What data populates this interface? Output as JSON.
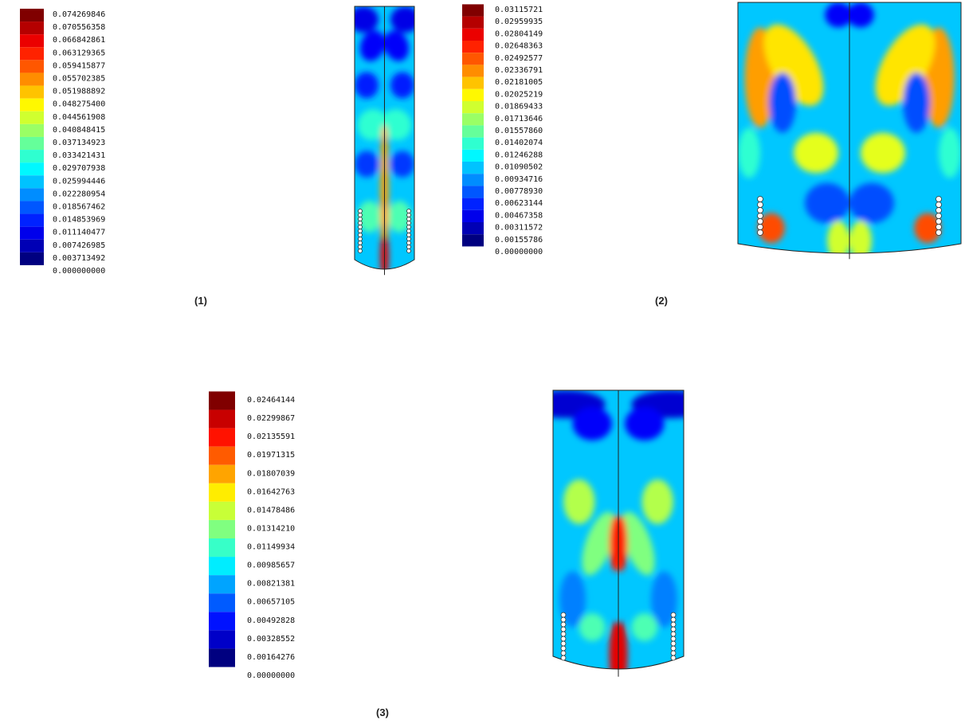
{
  "panels": [
    {
      "caption": "(1)",
      "legend_labels": [
        "0.074269846",
        "0.070556358",
        "0.066842861",
        "0.063129365",
        "0.059415877",
        "0.055702385",
        "0.051988892",
        "0.048275400",
        "0.044561908",
        "0.040848415",
        "0.037134923",
        "0.033421431",
        "0.029707938",
        "0.025994446",
        "0.022280954",
        "0.018567462",
        "0.014853969",
        "0.011140477",
        "0.007426985",
        "0.003713492",
        "0.000000000"
      ]
    },
    {
      "caption": "(2)",
      "legend_labels": [
        "0.03115721",
        "0.02959935",
        "0.02804149",
        "0.02648363",
        "0.02492577",
        "0.02336791",
        "0.02181005",
        "0.02025219",
        "0.01869433",
        "0.01713646",
        "0.01557860",
        "0.01402074",
        "0.01246288",
        "0.01090502",
        "0.00934716",
        "0.00778930",
        "0.00623144",
        "0.00467358",
        "0.00311572",
        "0.00155786",
        "0.00000000"
      ]
    },
    {
      "caption": "(3)",
      "legend_labels": [
        "0.02464144",
        "0.02299867",
        "0.02135591",
        "0.01971315",
        "0.01807039",
        "0.01642763",
        "0.01478486",
        "0.01314210",
        "0.01149934",
        "0.00985657",
        "0.00821381",
        "0.00657105",
        "0.00492828",
        "0.00328552",
        "0.00164276",
        "0.00000000"
      ]
    }
  ]
}
